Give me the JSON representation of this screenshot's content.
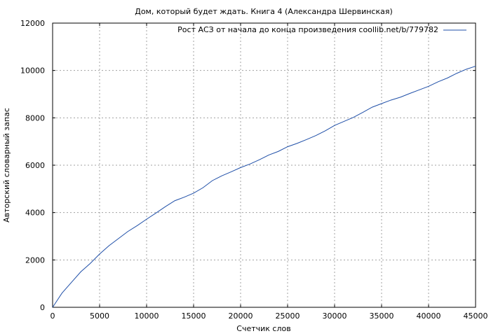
{
  "chart_data": {
    "type": "line",
    "title": "Дом, который будет ждать. Книга 4 (Александра Шервинская)",
    "xlabel": "Счетчик слов",
    "ylabel": "Авторский словарный запас",
    "xlim": [
      0,
      45000
    ],
    "ylim": [
      0,
      12000
    ],
    "x_ticks": [
      0,
      5000,
      10000,
      15000,
      20000,
      25000,
      30000,
      35000,
      40000,
      45000
    ],
    "y_ticks": [
      0,
      2000,
      4000,
      6000,
      8000,
      10000,
      12000
    ],
    "grid": true,
    "legend_position": "top-right",
    "series": [
      {
        "name": "Рост АСЗ от начала до конца произведения coollib.net/b/779782",
        "color": "#1f4fa8",
        "x": [
          0,
          500,
          1000,
          2000,
          3000,
          4000,
          5000,
          6000,
          7000,
          8000,
          9000,
          10000,
          11000,
          12000,
          13000,
          14000,
          15000,
          16000,
          17000,
          18000,
          19000,
          20000,
          21000,
          22000,
          23000,
          24000,
          25000,
          26000,
          27000,
          28000,
          29000,
          30000,
          31000,
          32000,
          33000,
          34000,
          35000,
          36000,
          37000,
          38000,
          39000,
          40000,
          41000,
          42000,
          43000,
          44000,
          45000
        ],
        "y": [
          0,
          300,
          600,
          1050,
          1500,
          1850,
          2250,
          2600,
          2900,
          3200,
          3450,
          3720,
          3980,
          4250,
          4500,
          4650,
          4820,
          5050,
          5350,
          5550,
          5720,
          5900,
          6050,
          6230,
          6430,
          6580,
          6780,
          6920,
          7080,
          7250,
          7450,
          7680,
          7850,
          8020,
          8230,
          8450,
          8600,
          8750,
          8870,
          9030,
          9180,
          9330,
          9520,
          9680,
          9880,
          10050,
          10180
        ]
      }
    ]
  }
}
